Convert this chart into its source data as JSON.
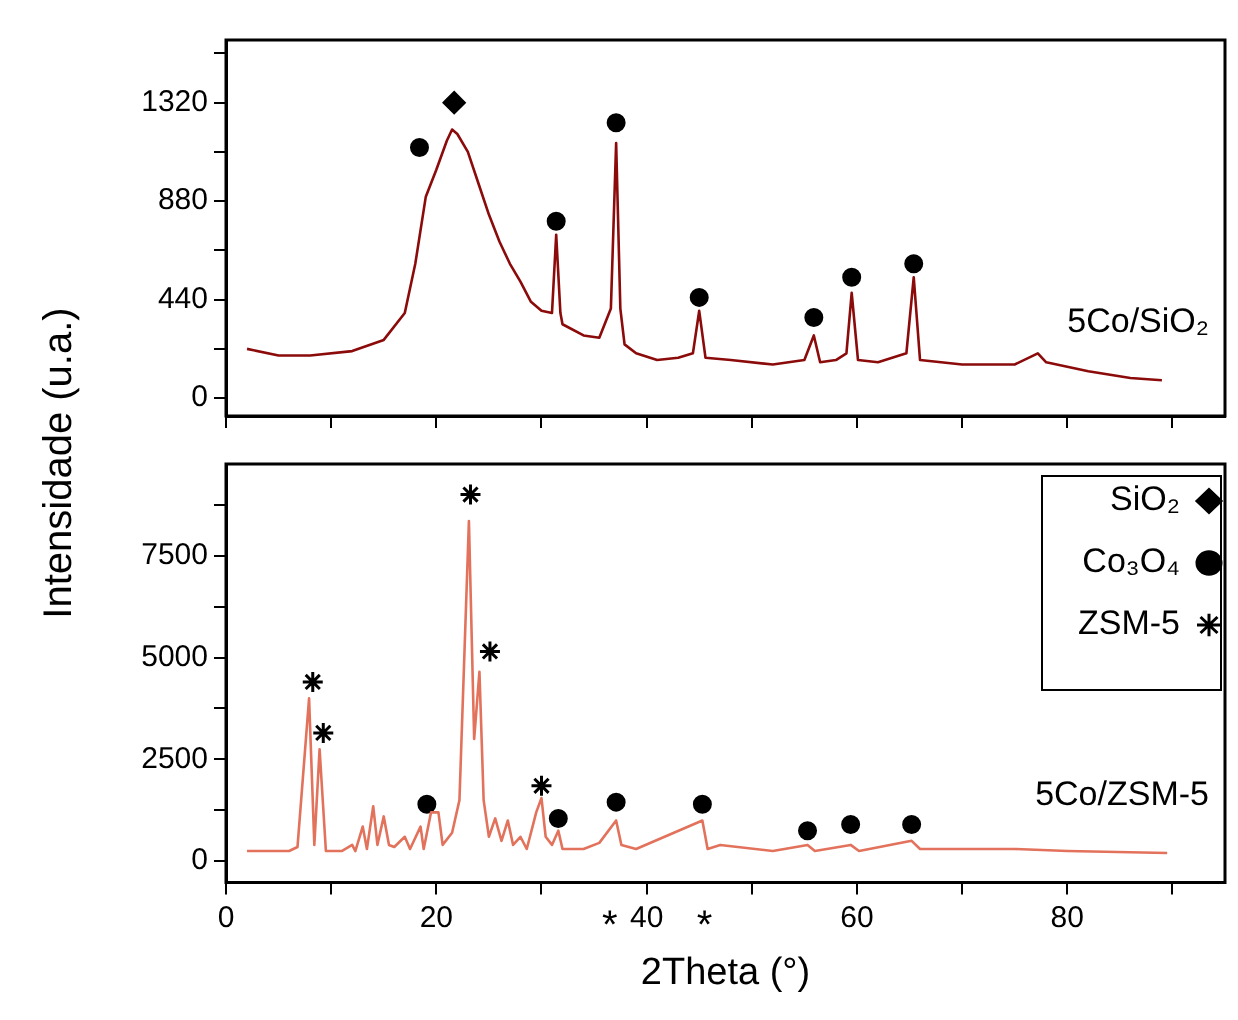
{
  "chart_data": [
    {
      "type": "line",
      "ylabel": "Intensidade (u.a.)",
      "xlim": [
        0,
        95
      ],
      "xticks": [
        0,
        {
          "value": 10,
          "label": null
        },
        20,
        {
          "value": 30,
          "label": null
        },
        40,
        {
          "value": 50,
          "label": null
        },
        60,
        {
          "value": 70,
          "label": null
        },
        80,
        {
          "value": 90,
          "label": null
        }
      ],
      "ylim": [
        -80,
        1600
      ],
      "yticks": [
        0,
        {
          "value": 220,
          "label": null
        },
        440,
        {
          "value": 660,
          "label": null
        },
        880,
        {
          "value": 1100,
          "label": null
        },
        1320,
        {
          "value": 1540,
          "label": null
        }
      ],
      "tick_labels": "y",
      "grid": false,
      "legend": false,
      "marker": "none",
      "series": [
        {
          "name": "5Co/SiO₂",
          "color": "#8b0a0a",
          "x": [
            2,
            5,
            8,
            12,
            15,
            17,
            18,
            19,
            20,
            21,
            21.5,
            22,
            23,
            24,
            25,
            26,
            27,
            28,
            29,
            30,
            31,
            31.4,
            31.8,
            32,
            34,
            35.5,
            36.6,
            37.1,
            37.5,
            37.9,
            39,
            41,
            43,
            44.4,
            45,
            45.6,
            48,
            52,
            55,
            55.9,
            56.5,
            58,
            59,
            59.5,
            60.1,
            62,
            64.7,
            65.4,
            66,
            70,
            75,
            77.2,
            78,
            82,
            86,
            89
          ],
          "values": [
            220,
            190,
            190,
            210,
            260,
            380,
            600,
            900,
            1020,
            1150,
            1200,
            1180,
            1100,
            960,
            820,
            700,
            600,
            520,
            430,
            390,
            380,
            730,
            380,
            330,
            280,
            270,
            400,
            1140,
            400,
            240,
            200,
            170,
            180,
            200,
            390,
            180,
            170,
            150,
            170,
            280,
            160,
            170,
            200,
            470,
            170,
            160,
            200,
            540,
            170,
            150,
            150,
            200,
            160,
            120,
            90,
            80
          ]
        },
        {
          "type": "scatter",
          "marker": "diamond",
          "color": "#000000",
          "x": [
            21.7
          ],
          "values": [
            1320
          ]
        },
        {
          "type": "scatter",
          "marker": "circle",
          "color": "#000000",
          "x": [
            18.4,
            31.4,
            37.1,
            45,
            55.9,
            59.5,
            65.4
          ],
          "values": [
            1120,
            790,
            1230,
            450,
            360,
            540,
            600
          ]
        }
      ]
    },
    {
      "type": "line",
      "xlabel": "2Theta (°)",
      "xlim": [
        0,
        95
      ],
      "xticks": [
        0,
        {
          "value": 10,
          "label": null
        },
        20,
        {
          "value": 30,
          "label": null
        },
        40,
        {
          "value": 50,
          "label": null
        },
        60,
        {
          "value": 70,
          "label": null
        },
        80,
        {
          "value": 90,
          "label": null
        }
      ],
      "ylim": [
        -520,
        9750
      ],
      "yticks": [
        0,
        {
          "value": 1250,
          "label": null
        },
        2500,
        {
          "value": 3750,
          "label": null
        },
        5000,
        {
          "value": 6250,
          "label": null
        },
        7500,
        {
          "value": 8750,
          "label": null
        }
      ],
      "grid": false,
      "legend": "top right",
      "marker": "none",
      "annotations": [
        "*",
        "*"
      ],
      "series": [
        {
          "name": "5Co/ZSM-5",
          "color": "#e2725b",
          "x": [
            2,
            6,
            6.8,
            7.9,
            8.4,
            8.9,
            9.5,
            11,
            12,
            12.3,
            13,
            13.4,
            14,
            14.4,
            15,
            15.5,
            16,
            17,
            17.5,
            18.5,
            18.8,
            19.5,
            20.2,
            20.6,
            21.5,
            22.2,
            23.1,
            23.6,
            24.1,
            24.5,
            25,
            25.6,
            26.2,
            26.8,
            27.3,
            28,
            28.6,
            29.5,
            30,
            30.4,
            31,
            31.6,
            32,
            34,
            35.5,
            37.1,
            37.6,
            39,
            45.3,
            45.8,
            47,
            52,
            55.3,
            56,
            59.4,
            60.2,
            65.2,
            66,
            75,
            80,
            89.5
          ],
          "values": [
            250,
            250,
            350,
            4000,
            400,
            2750,
            250,
            250,
            400,
            250,
            850,
            300,
            1350,
            400,
            1100,
            400,
            350,
            600,
            300,
            850,
            300,
            1200,
            1200,
            400,
            700,
            1500,
            8350,
            3000,
            4650,
            1500,
            600,
            1050,
            500,
            1000,
            400,
            600,
            300,
            1200,
            1550,
            600,
            400,
            750,
            300,
            300,
            450,
            1000,
            400,
            300,
            1000,
            300,
            400,
            250,
            400,
            250,
            400,
            250,
            500,
            300,
            300,
            250,
            200
          ]
        },
        {
          "type": "scatter",
          "name": "SiO₂",
          "marker": "diamond",
          "color": "#000000"
        },
        {
          "type": "scatter",
          "name": "Co₃O₄",
          "marker": "circle",
          "color": "#000000",
          "x": [
            19.1,
            31.6,
            37.1,
            45.3,
            55.3,
            59.4,
            65.2
          ],
          "values": [
            1400,
            1050,
            1450,
            1400,
            750,
            900,
            900
          ]
        },
        {
          "type": "scatter",
          "name": "ZSM-5",
          "marker": "cross",
          "color": "#000000",
          "x": [
            8.25,
            9.25,
            23.25,
            25.1,
            30
          ],
          "values": [
            4400,
            3150,
            9000,
            5150,
            1850
          ]
        }
      ]
    }
  ]
}
